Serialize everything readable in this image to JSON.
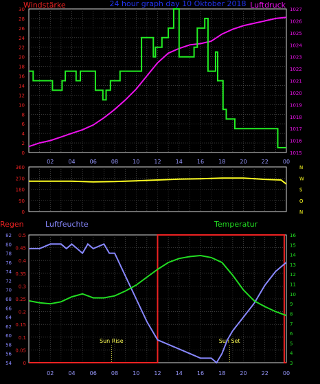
{
  "colors": {
    "background": "#000000",
    "frame": "#d8d8d8",
    "grid": "#5a5a5a",
    "wind": "#22ee22",
    "pressure": "#ee11ee",
    "direction": "#ffff22",
    "humidity": "#8888ff",
    "temperature": "#22dd22",
    "rain": "#ee2222",
    "title": "#2233ee",
    "sun": "#ffff55",
    "tick": "#9999ff"
  },
  "chart_data": [
    {
      "type": "line",
      "title": "24 hour graph day 10 Oktober 2018",
      "x_tick_labels": [
        "02",
        "04",
        "06",
        "08",
        "10",
        "12",
        "14",
        "16",
        "18",
        "20",
        "22",
        "00"
      ],
      "x_range": [
        0,
        24
      ],
      "grid": true,
      "series": [
        {
          "name": "Windstärke",
          "axis": "left",
          "ylim": [
            0,
            30
          ],
          "y_tick_labels": [
            "0",
            "2",
            "4",
            "6",
            "8",
            "10",
            "12",
            "14",
            "16",
            "18",
            "20",
            "22",
            "24",
            "26",
            "28",
            "30"
          ],
          "x": [
            0,
            0.4,
            0.4,
            2.2,
            2.2,
            3.1,
            3.1,
            3.4,
            3.4,
            4.4,
            4.4,
            4.8,
            4.8,
            6.2,
            6.2,
            6.9,
            6.9,
            7.2,
            7.2,
            7.6,
            7.6,
            8.5,
            8.5,
            10.5,
            10.5,
            11.6,
            11.6,
            11.8,
            11.8,
            12.4,
            12.4,
            13.0,
            13.0,
            13.5,
            13.5,
            14.0,
            14.0,
            15.4,
            15.4,
            15.7,
            15.7,
            16.4,
            16.4,
            16.7,
            16.7,
            17.4,
            17.4,
            17.6,
            17.6,
            18.1,
            18.1,
            18.4,
            18.4,
            19.2,
            19.2,
            20.2,
            20.2,
            22.8,
            22.8,
            23.2,
            23.2,
            24
          ],
          "values": [
            17,
            17,
            15,
            15,
            13,
            13,
            15,
            15,
            17,
            17,
            15,
            15,
            17,
            17,
            13,
            13,
            11,
            11,
            13,
            13,
            15,
            15,
            17,
            17,
            24,
            24,
            20,
            20,
            22,
            22,
            24,
            24,
            26,
            26,
            30,
            30,
            20,
            20,
            22,
            22,
            26,
            26,
            28,
            28,
            17,
            17,
            21,
            21,
            15,
            15,
            9,
            9,
            7,
            7,
            5,
            5,
            5,
            5,
            5,
            5,
            1,
            1
          ]
        },
        {
          "name": "Luftdruck",
          "axis": "right",
          "ylim": [
            1015,
            1027
          ],
          "y_tick_labels": [
            "1015",
            "1016",
            "1017",
            "1018",
            "1019",
            "1020",
            "1021",
            "1022",
            "1023",
            "1024",
            "1025",
            "1026",
            "1027"
          ],
          "x": [
            0,
            1,
            2,
            3,
            4,
            5,
            6,
            7,
            8,
            9,
            10,
            11,
            12,
            13,
            14,
            15,
            16,
            17,
            18,
            19,
            20,
            21,
            22,
            23,
            24
          ],
          "values": [
            1015.5,
            1015.8,
            1016.0,
            1016.3,
            1016.6,
            1016.9,
            1017.3,
            1017.9,
            1018.6,
            1019.4,
            1020.3,
            1021.4,
            1022.5,
            1023.3,
            1023.7,
            1024.0,
            1024.1,
            1024.3,
            1024.9,
            1025.3,
            1025.6,
            1025.8,
            1026.0,
            1026.2,
            1026.3
          ]
        }
      ]
    },
    {
      "type": "line",
      "title": "",
      "x_range": [
        0,
        24
      ],
      "ylim": [
        0,
        360
      ],
      "y_tick_labels": [
        "0",
        "90",
        "180",
        "270",
        "360"
      ],
      "right_labels": [
        "N",
        "W",
        "S",
        "O",
        "N"
      ],
      "grid": true,
      "series": [
        {
          "name": "",
          "x": [
            0,
            2,
            4,
            6,
            8,
            10,
            12,
            14,
            16,
            18,
            20,
            22,
            23.5,
            24
          ],
          "values": [
            245,
            245,
            245,
            240,
            242,
            248,
            255,
            262,
            265,
            270,
            270,
            260,
            255,
            222
          ]
        }
      ]
    },
    {
      "type": "line",
      "title": "",
      "x_tick_labels": [
        "02",
        "04",
        "06",
        "08",
        "10",
        "12",
        "14",
        "16",
        "18",
        "20",
        "22",
        "00"
      ],
      "x_range": [
        0,
        24
      ],
      "grid": true,
      "annotations": [
        {
          "label": "Sun Rise",
          "x": 7.7
        },
        {
          "label": "Sun Set",
          "x": 18.7
        }
      ],
      "series": [
        {
          "name": "Regen",
          "axis": "left-outer",
          "ylim": [
            0,
            0.5
          ],
          "y_tick_labels": [
            "0",
            "0.05",
            "0.1",
            "0.15",
            "0.2",
            "0.25",
            "0.3",
            "0.35",
            "0.4",
            "0.45",
            "0.5"
          ],
          "x": [
            0,
            12.0,
            12.0,
            23.8,
            23.8,
            24
          ],
          "values": [
            0,
            0,
            0.5,
            0.5,
            0,
            0
          ]
        },
        {
          "name": "Luftfeuchte",
          "axis": "left-inner",
          "ylim": [
            54,
            82
          ],
          "y_tick_labels": [
            "54",
            "56",
            "58",
            "60",
            "62",
            "64",
            "66",
            "68",
            "70",
            "72",
            "74",
            "76",
            "78",
            "80",
            "82"
          ],
          "x": [
            0,
            1,
            2,
            2.5,
            3,
            3.5,
            4,
            4.5,
            5,
            5.5,
            6,
            7,
            7.5,
            8,
            9,
            10,
            11,
            11.5,
            12,
            13,
            14,
            15,
            16,
            17,
            17.5,
            18,
            18.5,
            19,
            20,
            21,
            22,
            23,
            24
          ],
          "values": [
            79,
            79,
            80,
            80,
            80,
            79,
            80,
            79,
            78,
            80,
            79,
            80,
            78,
            78,
            73,
            68,
            63,
            61,
            59,
            58,
            57,
            56,
            55,
            55,
            54,
            56,
            59,
            61,
            64,
            67,
            71,
            74,
            76
          ]
        },
        {
          "name": "Temperatur",
          "axis": "right",
          "ylim": [
            3,
            16
          ],
          "y_tick_labels": [
            "3",
            "4",
            "5",
            "6",
            "7",
            "8",
            "9",
            "10",
            "11",
            "12",
            "13",
            "14",
            "15",
            "16"
          ],
          "x": [
            0,
            1,
            2,
            3,
            4,
            5,
            6,
            7,
            8,
            9,
            10,
            11,
            12,
            13,
            14,
            15,
            16,
            17,
            18,
            19,
            20,
            21,
            22,
            23,
            24
          ],
          "values": [
            9.3,
            9.1,
            9.0,
            9.2,
            9.7,
            10.0,
            9.6,
            9.6,
            9.8,
            10.3,
            10.9,
            11.7,
            12.5,
            13.2,
            13.6,
            13.8,
            13.9,
            13.7,
            13.2,
            11.9,
            10.4,
            9.3,
            8.7,
            8.2,
            7.8
          ]
        }
      ]
    }
  ]
}
